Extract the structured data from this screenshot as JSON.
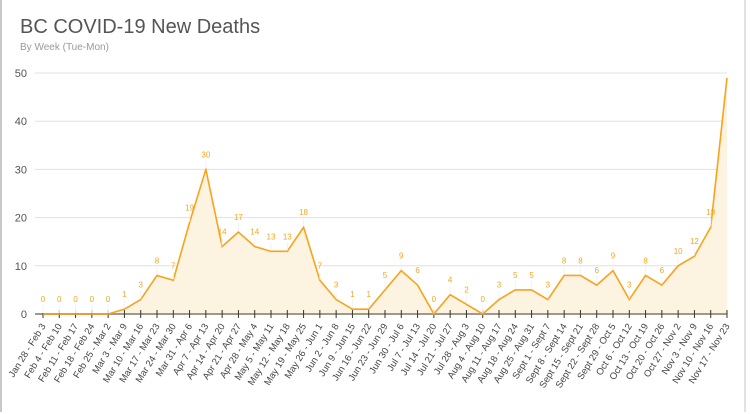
{
  "chart_data": {
    "type": "area",
    "title": "BC COVID-19 New Deaths",
    "subtitle": "By Week (Tue-Mon)",
    "xlabel": "",
    "ylabel": "",
    "ylim": [
      0,
      50
    ],
    "yticks": [
      0,
      10,
      20,
      30,
      40,
      50
    ],
    "grid": true,
    "line_color": "#f7a31c",
    "fill_color": "#fdf3e1",
    "label_color": "#f6a623",
    "categories": [
      "Jan 28 - Feb 3",
      "Feb 4 - Feb 10",
      "Feb 11 - Feb 17",
      "Feb 18 - Feb 24",
      "Feb 25 - Mar 2",
      "Mar 3 - Mar 9",
      "Mar 10 - Mar 16",
      "Mar 17 - Mar 23",
      "Mar 24 - Mar 30",
      "Mar 31 - Apr 6",
      "Apr 7 - Apr 13",
      "Apr 14 - Apr 20",
      "Apr 21 - Apr 27",
      "Apr 28 - May 4",
      "May 5 - May 11",
      "May 12 - May 18",
      "May 19 - May 25",
      "May 26 - Jun 1",
      "Jun 2 - Jun 8",
      "Jun 9 - Jun 15",
      "Jun 16 - Jun 22",
      "Jun 23 - Jun 29",
      "Jun 30 - Jul 6",
      "Jul 7 - Jul 13",
      "Jul 14 - Jul 20",
      "Jul 21 - Jul 27",
      "Jul 28 - Aug 3",
      "Aug 4 - Aug 10",
      "Aug 11 - Aug 17",
      "Aug 18 - Aug 24",
      "Aug 25 - Aug 31",
      "Sept 1 - Sept 7",
      "Sept 8 - Sept 14",
      "Sept 15 - Sept 21",
      "Sept 22 - Sept 28",
      "Sept 29 - Oct 5",
      "Oct 6 - Oct 12",
      "Oct 13 - Oct 19",
      "Oct 20 - Oct 26",
      "Oct 27 - Nov 2",
      "Nov 3 - Nov 9",
      "Nov 10 - Nov 16",
      "Nov 17 - Nov 23"
    ],
    "values": [
      0,
      0,
      0,
      0,
      0,
      1,
      3,
      8,
      7,
      19,
      30,
      14,
      17,
      14,
      13,
      13,
      18,
      7,
      3,
      1,
      1,
      5,
      9,
      6,
      0,
      4,
      2,
      0,
      3,
      5,
      5,
      3,
      8,
      8,
      6,
      9,
      3,
      8,
      6,
      10,
      12,
      18,
      49
    ],
    "label_hidden_last": true
  }
}
